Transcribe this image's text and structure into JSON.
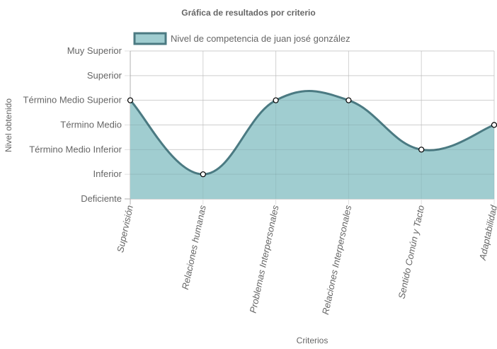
{
  "chart_data": {
    "type": "area",
    "title": "Gráfica de resultados por criterio",
    "xlabel": "Criterios",
    "ylabel": "Nivel obtenido",
    "categories": [
      "Supervisión",
      "Relaciones humanas",
      "Problemas Interpersonales",
      "Relaciones Interpersonales",
      "Sentido Común y Tacto",
      "Adaptabilidad"
    ],
    "y_levels": [
      "Deficiente",
      "Inferior",
      "Término Medio Inferior",
      "Término Medio",
      "Término Medio Superior",
      "Superior",
      "Muy Superior"
    ],
    "ylim": [
      0,
      6
    ],
    "series": [
      {
        "name": "Nivel de competencia de juan josé gonzález",
        "values": [
          4,
          1,
          4,
          4,
          2,
          3
        ]
      }
    ],
    "grid": true,
    "legend_position": "top",
    "smooth": true,
    "colors": {
      "fill": "#a0cdd0",
      "line": "#4b7a82",
      "grid": "#e0e0e0",
      "axis": "#b0b0b0",
      "text": "#666666"
    }
  }
}
